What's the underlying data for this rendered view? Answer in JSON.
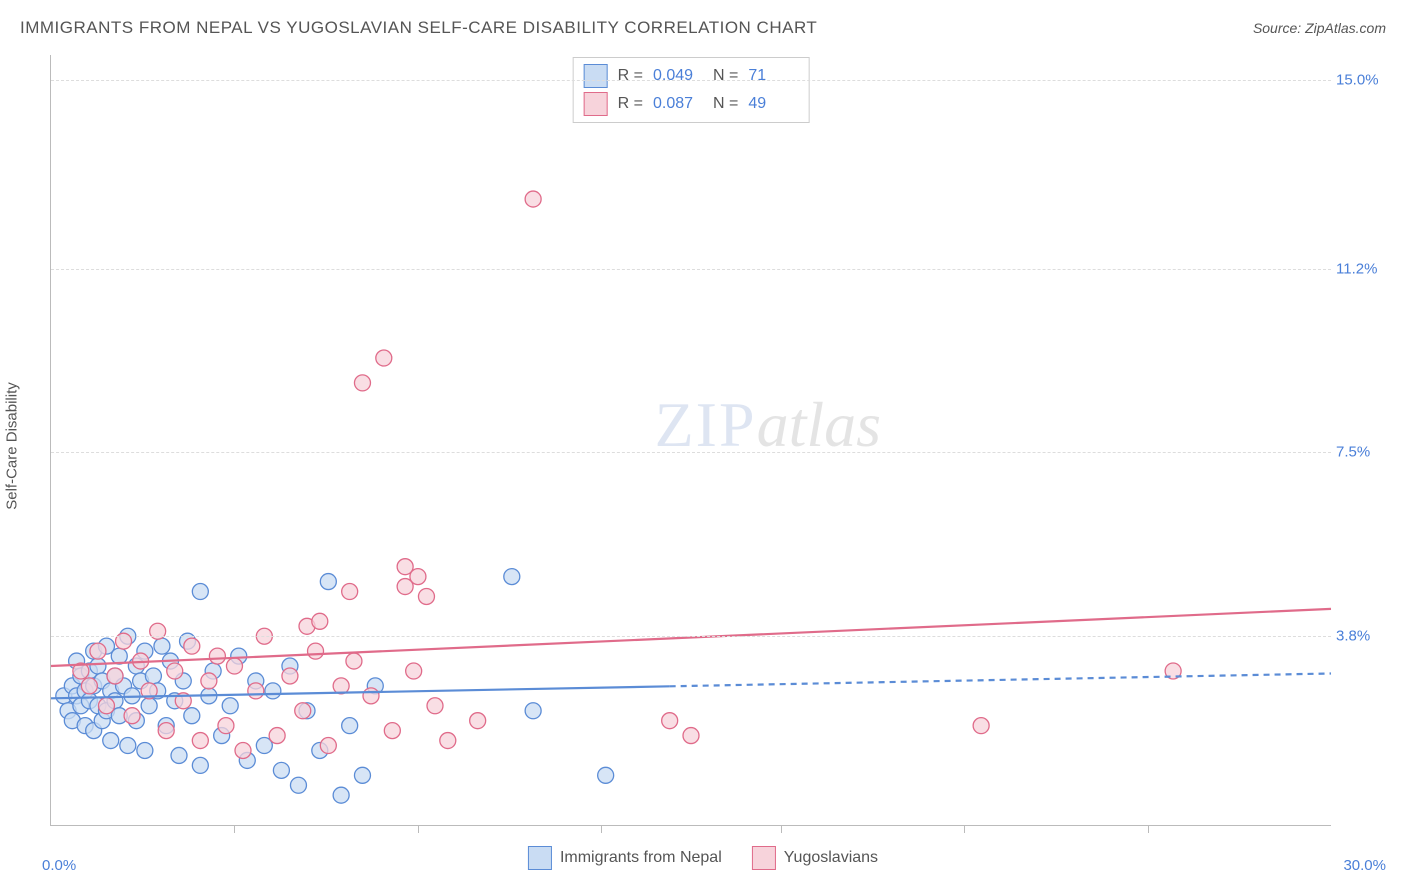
{
  "title": "IMMIGRANTS FROM NEPAL VS YUGOSLAVIAN SELF-CARE DISABILITY CORRELATION CHART",
  "source": "Source: ZipAtlas.com",
  "y_axis_label": "Self-Care Disability",
  "x_origin": "0.0%",
  "x_max": "30.0%",
  "watermark_a": "ZIP",
  "watermark_b": "atlas",
  "chart": {
    "type": "scatter",
    "xlim": [
      0,
      30
    ],
    "ylim": [
      0,
      15.5
    ],
    "yticks": [
      {
        "v": 3.8,
        "label": "3.8%"
      },
      {
        "v": 7.5,
        "label": "7.5%"
      },
      {
        "v": 11.2,
        "label": "11.2%"
      },
      {
        "v": 15.0,
        "label": "15.0%"
      }
    ],
    "xtick_positions": [
      4.3,
      8.6,
      12.9,
      17.1,
      21.4,
      25.7
    ],
    "marker_radius": 8,
    "background_color": "#ffffff",
    "grid_color": "#dddddd",
    "series": [
      {
        "key": "nepal",
        "label": "Immigrants from Nepal",
        "fill": "#c9dcf3",
        "stroke": "#5b8cd6",
        "R": "0.049",
        "N": "71",
        "trend": {
          "y0": 2.55,
          "y1": 3.05,
          "solid_until_x": 14.5
        },
        "points": [
          [
            0.3,
            2.6
          ],
          [
            0.4,
            2.3
          ],
          [
            0.5,
            2.8
          ],
          [
            0.5,
            2.1
          ],
          [
            0.6,
            2.6
          ],
          [
            0.6,
            3.3
          ],
          [
            0.7,
            2.4
          ],
          [
            0.7,
            3.0
          ],
          [
            0.8,
            2.7
          ],
          [
            0.8,
            2.0
          ],
          [
            0.9,
            3.1
          ],
          [
            0.9,
            2.5
          ],
          [
            1.0,
            2.8
          ],
          [
            1.0,
            3.5
          ],
          [
            1.0,
            1.9
          ],
          [
            1.1,
            2.4
          ],
          [
            1.1,
            3.2
          ],
          [
            1.2,
            2.1
          ],
          [
            1.2,
            2.9
          ],
          [
            1.3,
            3.6
          ],
          [
            1.3,
            2.3
          ],
          [
            1.4,
            2.7
          ],
          [
            1.4,
            1.7
          ],
          [
            1.5,
            3.0
          ],
          [
            1.5,
            2.5
          ],
          [
            1.6,
            3.4
          ],
          [
            1.6,
            2.2
          ],
          [
            1.7,
            2.8
          ],
          [
            1.8,
            3.8
          ],
          [
            1.8,
            1.6
          ],
          [
            1.9,
            2.6
          ],
          [
            2.0,
            3.2
          ],
          [
            2.0,
            2.1
          ],
          [
            2.1,
            2.9
          ],
          [
            2.2,
            3.5
          ],
          [
            2.2,
            1.5
          ],
          [
            2.3,
            2.4
          ],
          [
            2.4,
            3.0
          ],
          [
            2.5,
            2.7
          ],
          [
            2.6,
            3.6
          ],
          [
            2.7,
            2.0
          ],
          [
            2.8,
            3.3
          ],
          [
            2.9,
            2.5
          ],
          [
            3.0,
            1.4
          ],
          [
            3.1,
            2.9
          ],
          [
            3.2,
            3.7
          ],
          [
            3.3,
            2.2
          ],
          [
            3.5,
            4.7
          ],
          [
            3.5,
            1.2
          ],
          [
            3.7,
            2.6
          ],
          [
            3.8,
            3.1
          ],
          [
            4.0,
            1.8
          ],
          [
            4.2,
            2.4
          ],
          [
            4.4,
            3.4
          ],
          [
            4.6,
            1.3
          ],
          [
            4.8,
            2.9
          ],
          [
            5.0,
            1.6
          ],
          [
            5.2,
            2.7
          ],
          [
            5.4,
            1.1
          ],
          [
            5.6,
            3.2
          ],
          [
            5.8,
            0.8
          ],
          [
            6.0,
            2.3
          ],
          [
            6.3,
            1.5
          ],
          [
            6.5,
            4.9
          ],
          [
            6.8,
            0.6
          ],
          [
            7.0,
            2.0
          ],
          [
            7.3,
            1.0
          ],
          [
            7.6,
            2.8
          ],
          [
            10.8,
            5.0
          ],
          [
            11.3,
            2.3
          ],
          [
            13.0,
            1.0
          ]
        ]
      },
      {
        "key": "yugo",
        "label": "Yugoslavians",
        "fill": "#f7d3db",
        "stroke": "#e06b8a",
        "R": "0.087",
        "N": "49",
        "trend": {
          "y0": 3.2,
          "y1": 4.35,
          "solid_until_x": 30
        },
        "points": [
          [
            0.7,
            3.1
          ],
          [
            0.9,
            2.8
          ],
          [
            1.1,
            3.5
          ],
          [
            1.3,
            2.4
          ],
          [
            1.5,
            3.0
          ],
          [
            1.7,
            3.7
          ],
          [
            1.9,
            2.2
          ],
          [
            2.1,
            3.3
          ],
          [
            2.3,
            2.7
          ],
          [
            2.5,
            3.9
          ],
          [
            2.7,
            1.9
          ],
          [
            2.9,
            3.1
          ],
          [
            3.1,
            2.5
          ],
          [
            3.3,
            3.6
          ],
          [
            3.5,
            1.7
          ],
          [
            3.7,
            2.9
          ],
          [
            3.9,
            3.4
          ],
          [
            4.1,
            2.0
          ],
          [
            4.3,
            3.2
          ],
          [
            4.5,
            1.5
          ],
          [
            4.8,
            2.7
          ],
          [
            5.0,
            3.8
          ],
          [
            5.3,
            1.8
          ],
          [
            5.6,
            3.0
          ],
          [
            5.9,
            2.3
          ],
          [
            6.0,
            4.0
          ],
          [
            6.2,
            3.5
          ],
          [
            6.3,
            4.1
          ],
          [
            6.5,
            1.6
          ],
          [
            6.8,
            2.8
          ],
          [
            7.0,
            4.7
          ],
          [
            7.1,
            3.3
          ],
          [
            7.3,
            8.9
          ],
          [
            7.5,
            2.6
          ],
          [
            7.8,
            9.4
          ],
          [
            8.0,
            1.9
          ],
          [
            8.3,
            5.2
          ],
          [
            8.3,
            4.8
          ],
          [
            8.5,
            3.1
          ],
          [
            8.6,
            5.0
          ],
          [
            8.8,
            4.6
          ],
          [
            9.0,
            2.4
          ],
          [
            9.3,
            1.7
          ],
          [
            10.0,
            2.1
          ],
          [
            11.3,
            12.6
          ],
          [
            14.5,
            2.1
          ],
          [
            15.0,
            1.8
          ],
          [
            21.8,
            2.0
          ],
          [
            26.3,
            3.1
          ]
        ]
      }
    ]
  },
  "legend_top": {
    "r_label": "R =",
    "n_label": "N ="
  }
}
